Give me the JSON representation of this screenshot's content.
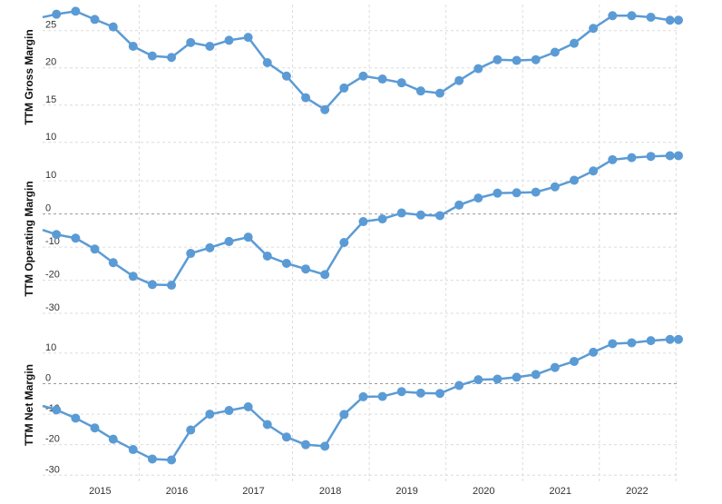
{
  "colors": {
    "series": "#5b9bd5",
    "grid": "#dcdcdc",
    "zero_line": "#999999"
  },
  "x_ticks": [
    {
      "label": "2015",
      "value": 2015.0
    },
    {
      "label": "2016",
      "value": 2016.0
    },
    {
      "label": "2017",
      "value": 2017.0
    },
    {
      "label": "2018",
      "value": 2018.0
    },
    {
      "label": "2019",
      "value": 2019.0
    },
    {
      "label": "2020",
      "value": 2020.0
    },
    {
      "label": "2021",
      "value": 2021.0
    },
    {
      "label": "2022",
      "value": 2022.0
    }
  ],
  "chart_data": [
    {
      "type": "line",
      "ylabel": "TTM Gross Margin",
      "xlim": [
        2014.25,
        2022.54
      ],
      "ylim": [
        9,
        28.5
      ],
      "y_ticks": [
        10,
        15,
        20,
        25
      ],
      "grid": true,
      "x": [
        2014.25,
        2014.43,
        2014.68,
        2014.93,
        2015.17,
        2015.43,
        2015.68,
        2015.93,
        2016.18,
        2016.43,
        2016.68,
        2016.93,
        2017.18,
        2017.43,
        2017.68,
        2017.93,
        2018.18,
        2018.43,
        2018.68,
        2018.93,
        2019.18,
        2019.43,
        2019.68,
        2019.93,
        2020.18,
        2020.43,
        2020.68,
        2020.93,
        2021.18,
        2021.43,
        2021.68,
        2021.93,
        2022.18,
        2022.43,
        2022.54
      ],
      "series": [
        {
          "values": [
            26.8,
            27.2,
            27.6,
            26.5,
            25.5,
            22.9,
            21.6,
            21.4,
            23.4,
            22.9,
            23.7,
            24.1,
            20.7,
            18.9,
            16.0,
            14.4,
            17.3,
            18.9,
            18.5,
            18.0,
            16.9,
            16.6,
            18.3,
            19.9,
            21.1,
            21.0,
            21.1,
            22.1,
            23.3,
            25.3,
            27.0,
            27.0,
            26.8,
            26.4,
            26.4
          ]
        }
      ]
    },
    {
      "type": "line",
      "ylabel": "TTM Operating Margin",
      "xlim": [
        2014.25,
        2022.54
      ],
      "ylim": [
        -33,
        18
      ],
      "y_ticks": [
        -30,
        -20,
        -10,
        0,
        10
      ],
      "grid": true,
      "x": [
        2014.25,
        2014.43,
        2014.68,
        2014.93,
        2015.17,
        2015.43,
        2015.68,
        2015.93,
        2016.18,
        2016.43,
        2016.68,
        2016.93,
        2017.18,
        2017.43,
        2017.68,
        2017.93,
        2018.18,
        2018.43,
        2018.68,
        2018.93,
        2019.18,
        2019.43,
        2019.68,
        2019.93,
        2020.18,
        2020.43,
        2020.68,
        2020.93,
        2021.18,
        2021.43,
        2021.68,
        2021.93,
        2022.18,
        2022.43,
        2022.54
      ],
      "series": [
        {
          "values": [
            -4.8,
            -6.2,
            -7.3,
            -10.6,
            -14.7,
            -18.8,
            -21.3,
            -21.5,
            -11.9,
            -10.2,
            -8.3,
            -7.0,
            -12.7,
            -14.9,
            -16.6,
            -18.3,
            -8.6,
            -2.3,
            -1.5,
            0.3,
            -0.3,
            -0.5,
            2.7,
            4.8,
            6.3,
            6.4,
            6.6,
            8.2,
            10.2,
            13.0,
            16.4,
            17.0,
            17.4,
            17.6,
            17.6
          ]
        }
      ]
    },
    {
      "type": "line",
      "ylabel": "TTM Net Margin",
      "xlim": [
        2014.25,
        2022.54
      ],
      "ylim": [
        -32,
        18
      ],
      "y_ticks": [
        -30,
        -20,
        -10,
        0,
        10
      ],
      "grid": true,
      "x": [
        2014.25,
        2014.43,
        2014.68,
        2014.93,
        2015.17,
        2015.43,
        2015.68,
        2015.93,
        2016.18,
        2016.43,
        2016.68,
        2016.93,
        2017.18,
        2017.43,
        2017.68,
        2017.93,
        2018.18,
        2018.43,
        2018.68,
        2018.93,
        2019.18,
        2019.43,
        2019.68,
        2019.93,
        2020.18,
        2020.43,
        2020.68,
        2020.93,
        2021.18,
        2021.43,
        2021.68,
        2021.93,
        2022.18,
        2022.43,
        2022.54
      ],
      "series": [
        {
          "values": [
            -7.3,
            -8.6,
            -11.3,
            -14.5,
            -18.2,
            -21.6,
            -24.7,
            -25.0,
            -15.2,
            -10.0,
            -8.8,
            -7.6,
            -13.4,
            -17.5,
            -20.0,
            -20.5,
            -10.1,
            -4.3,
            -4.2,
            -2.6,
            -3.1,
            -3.2,
            -0.6,
            1.3,
            1.5,
            2.1,
            3.0,
            5.3,
            7.3,
            10.3,
            13.1,
            13.4,
            14.1,
            14.5,
            14.5
          ]
        }
      ]
    }
  ]
}
